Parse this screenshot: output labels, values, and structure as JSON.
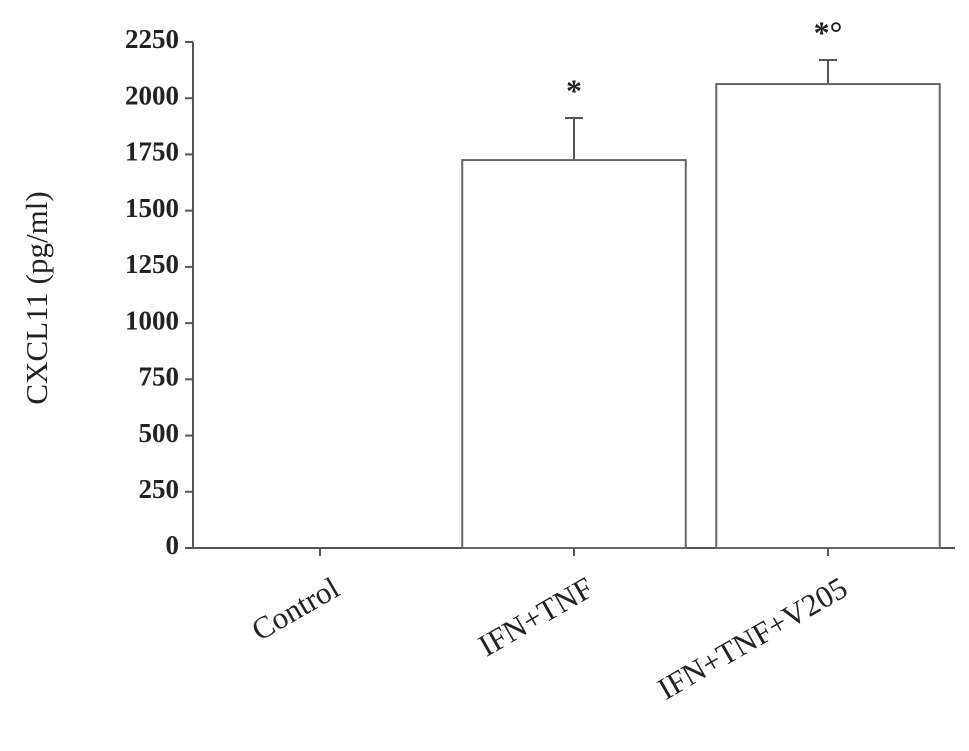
{
  "chart_data": {
    "type": "bar",
    "ylabel": "CXCL11 (pg/ml)",
    "categories": [
      "Control",
      "IFN+TNF",
      "IFN+TNF+V205"
    ],
    "values": [
      0,
      1725,
      2063
    ],
    "errors": [
      0,
      187,
      107
    ],
    "annotations": [
      null,
      "*",
      "*°"
    ],
    "color": "#ffffff",
    "edgecolor": "#666666",
    "ylim": [
      0,
      2250
    ],
    "yticks": [
      0,
      250,
      500,
      750,
      1000,
      1250,
      1500,
      1750,
      2000,
      2250
    ],
    "grid": false
  }
}
